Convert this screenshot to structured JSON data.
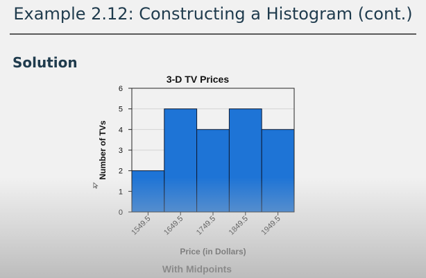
{
  "slide": {
    "title": "Example 2.12: Constructing a Histogram (cont.)",
    "section_label": "Solution"
  },
  "chart_data": {
    "type": "bar",
    "title": "3-D TV Prices",
    "subtitle": "With Midpoints",
    "xlabel": "Price (in Dollars)",
    "ylabel": "Number of TVs",
    "categories": [
      "1549.5",
      "1649.5",
      "1749.5",
      "1849.5",
      "1949.5"
    ],
    "values": [
      2,
      5,
      4,
      5,
      4
    ],
    "ylim": [
      0,
      6
    ],
    "yticks": [
      0,
      1,
      2,
      3,
      4,
      5,
      6
    ],
    "grid": true,
    "bar_color": "#1e74d6",
    "bar_edge_color": "#0d1b33"
  }
}
